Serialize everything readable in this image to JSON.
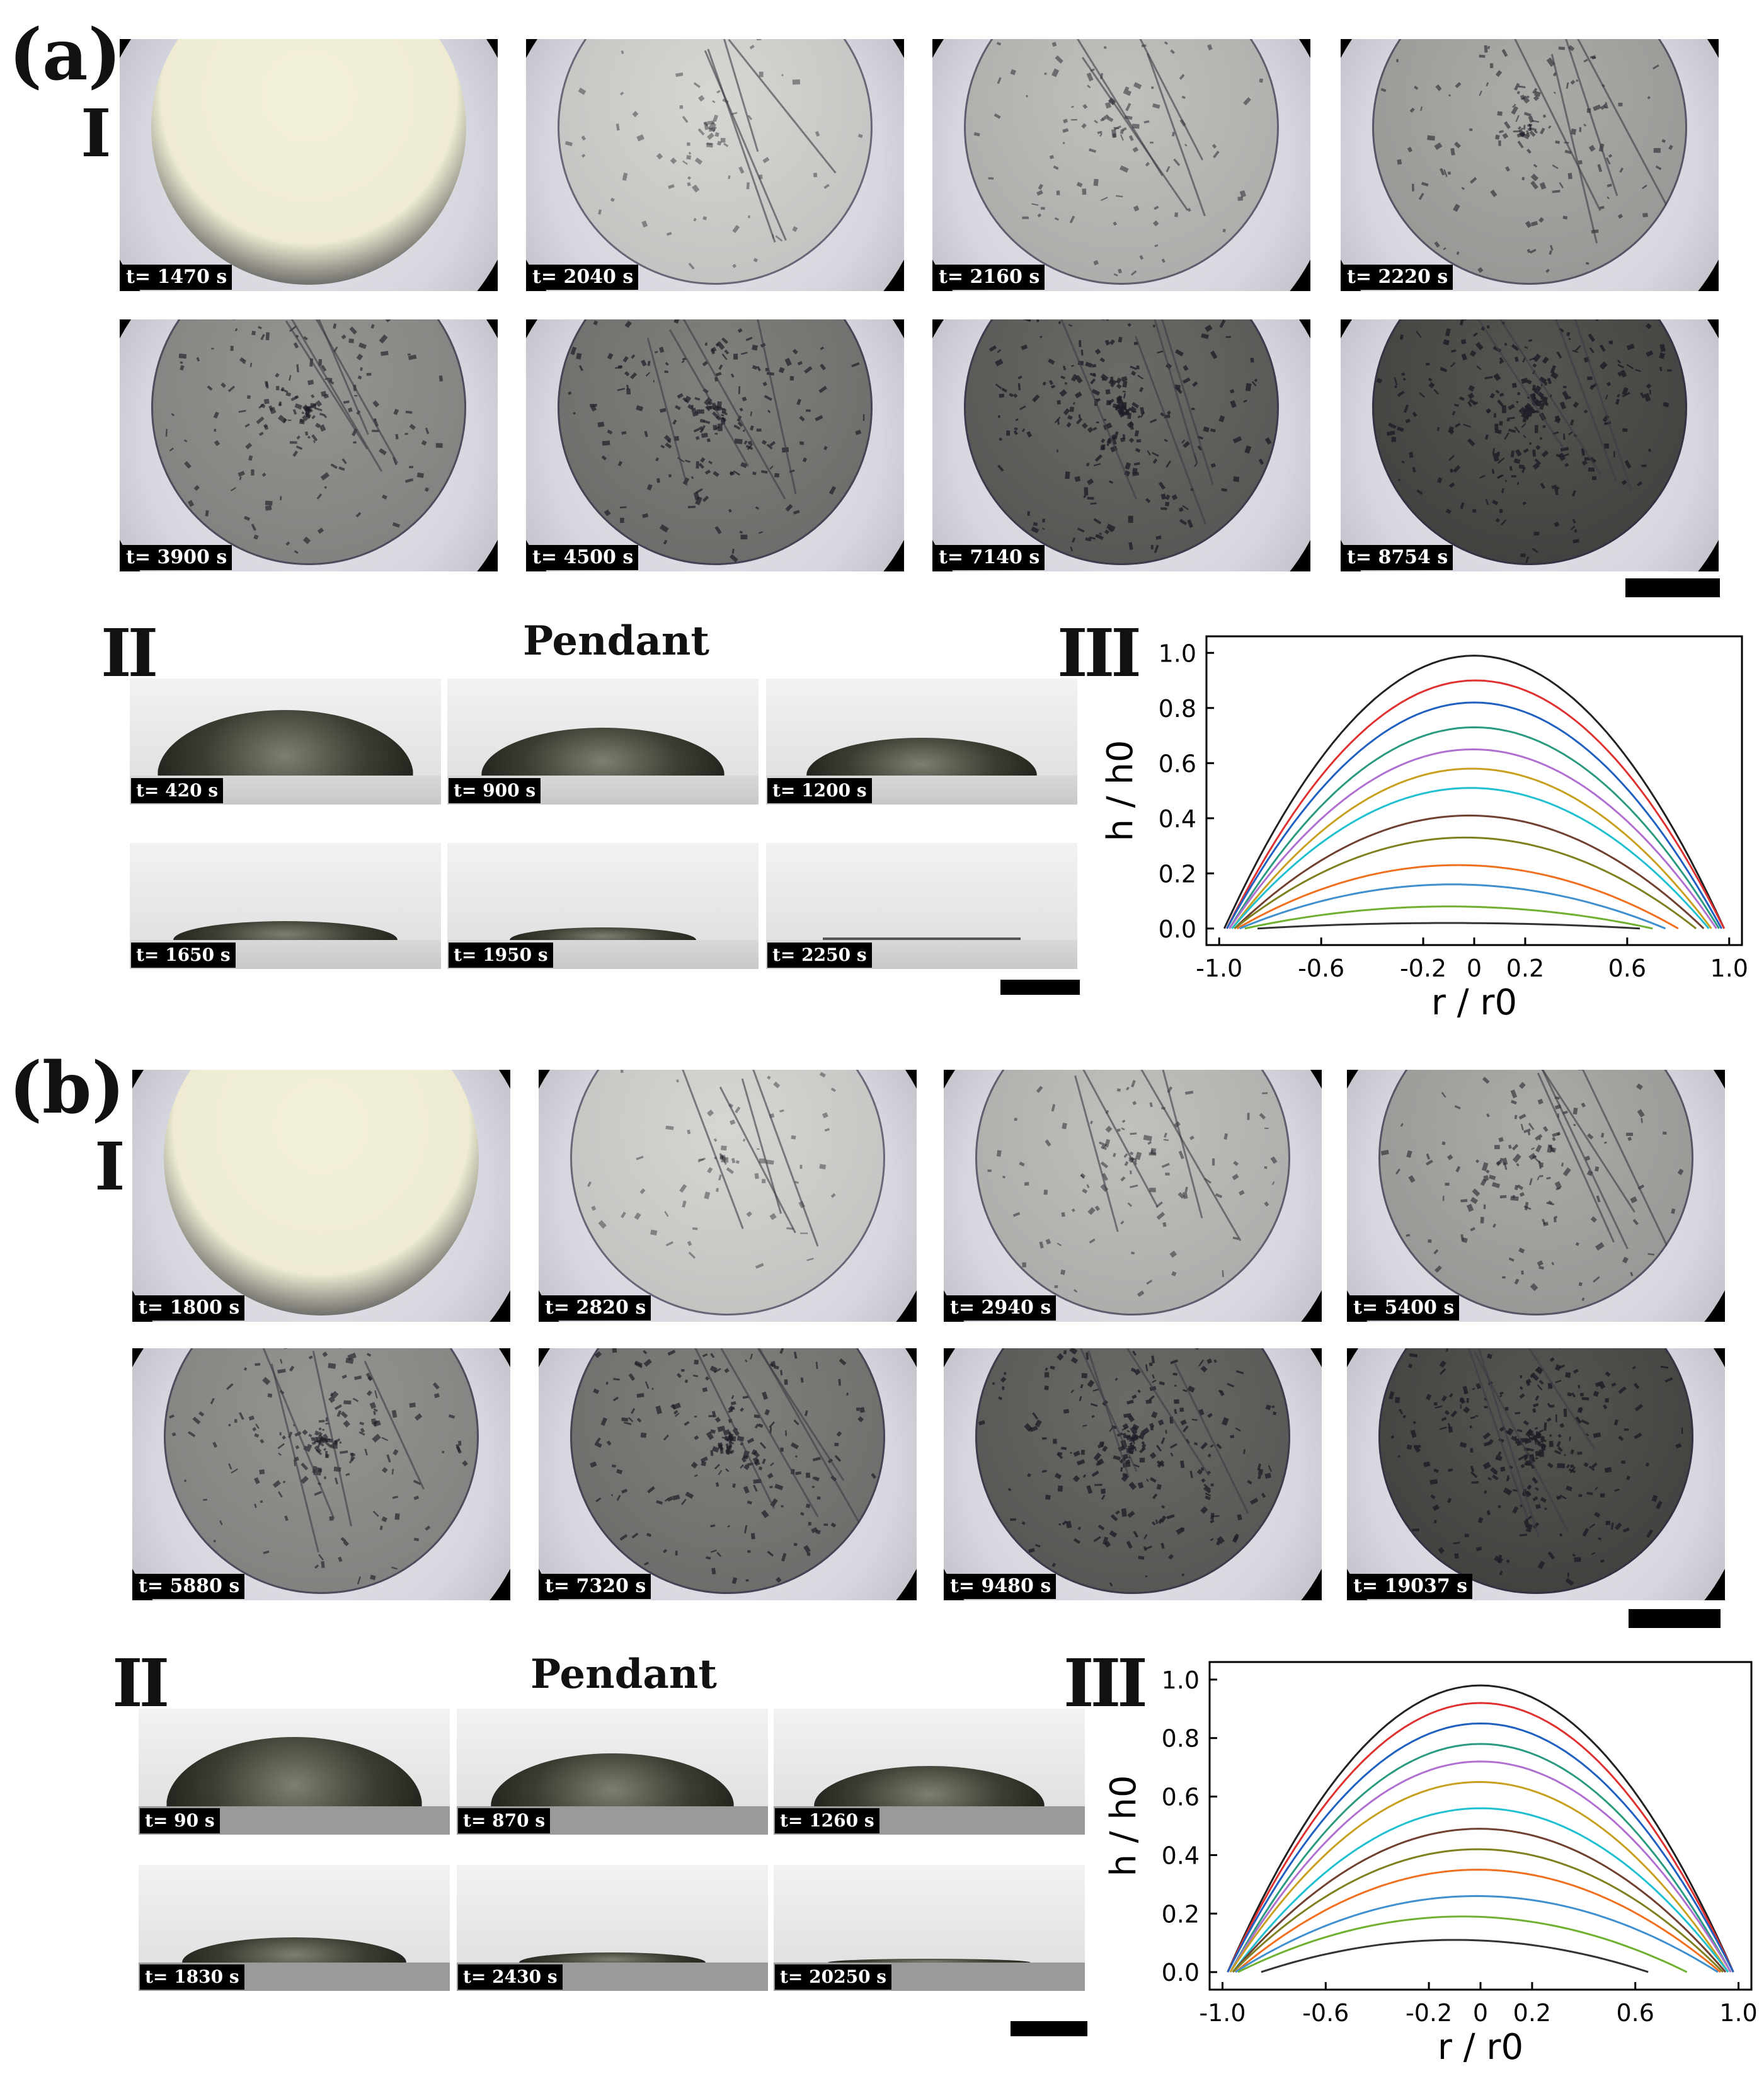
{
  "panels": {
    "a": {
      "label": "(a)",
      "row_I_label": "I",
      "row_II_label": "II",
      "row_III_label": "III",
      "pendant_title": "Pendant",
      "top_times": [
        "t= 1470 s",
        "t= 2040 s",
        "t= 2160 s",
        "t= 2220 s",
        "t= 3900 s",
        "t= 4500 s",
        "t= 7140 s",
        "t= 8754 s"
      ],
      "side_times": [
        "t= 420 s",
        "t= 900 s",
        "t= 1200 s",
        "t= 1650 s",
        "t= 1950 s",
        "t= 2250 s"
      ]
    },
    "b": {
      "label": "(b)",
      "row_I_label": "I",
      "row_II_label": "II",
      "row_III_label": "III",
      "pendant_title": "Pendant",
      "top_times": [
        "t= 1800 s",
        "t= 2820 s",
        "t= 2940 s",
        "t= 5400 s",
        "t= 5880 s",
        "t= 7320 s",
        "t= 9480 s",
        "t= 19037 s"
      ],
      "side_times": [
        "t= 90 s",
        "t= 870 s",
        "t= 1260 s",
        "t= 1830 s",
        "t= 2430 s",
        "t= 20250 s"
      ]
    }
  },
  "chart_data": [
    {
      "type": "line",
      "panel": "a-III",
      "xlabel": "r / r0",
      "ylabel": "h / h0",
      "xlim": [
        -1.0,
        1.0
      ],
      "ylim": [
        0.0,
        1.0
      ],
      "xticks": [
        "-1.0",
        "-0.6",
        "-0.2",
        "0",
        "0.2",
        "0.6",
        "1.0"
      ],
      "xtick_values": [
        -1.0,
        -0.6,
        -0.2,
        0,
        0.2,
        0.6,
        1.0
      ],
      "yticks": [
        "0.0",
        "0.2",
        "0.4",
        "0.6",
        "0.8",
        "1.0"
      ],
      "ytick_values": [
        0,
        0.2,
        0.4,
        0.6,
        0.8,
        1.0
      ],
      "series": [
        {
          "color": "#222222",
          "peak": 0.99,
          "x_start": -0.98,
          "x_end": 0.98
        },
        {
          "color": "#e03030",
          "peak": 0.9,
          "x_start": -0.97,
          "x_end": 0.98
        },
        {
          "color": "#2060c0",
          "peak": 0.82,
          "x_start": -0.97,
          "x_end": 0.97
        },
        {
          "color": "#2a9a80",
          "peak": 0.73,
          "x_start": -0.96,
          "x_end": 0.96
        },
        {
          "color": "#b070d0",
          "peak": 0.65,
          "x_start": -0.96,
          "x_end": 0.95
        },
        {
          "color": "#c8a020",
          "peak": 0.58,
          "x_start": -0.95,
          "x_end": 0.93
        },
        {
          "color": "#20c0d0",
          "peak": 0.51,
          "x_start": -0.95,
          "x_end": 0.92
        },
        {
          "color": "#704030",
          "peak": 0.41,
          "x_start": -0.94,
          "x_end": 0.9
        },
        {
          "color": "#808020",
          "peak": 0.33,
          "x_start": -0.94,
          "x_end": 0.87
        },
        {
          "color": "#f07020",
          "peak": 0.23,
          "x_start": -0.93,
          "x_end": 0.8
        },
        {
          "color": "#4090d0",
          "peak": 0.16,
          "x_start": -0.92,
          "x_end": 0.75
        },
        {
          "color": "#70b030",
          "peak": 0.08,
          "x_start": -0.9,
          "x_end": 0.7
        },
        {
          "color": "#333333",
          "peak": 0.02,
          "x_start": -0.85,
          "x_end": 0.65
        }
      ]
    },
    {
      "type": "line",
      "panel": "b-III",
      "xlabel": "r / r0",
      "ylabel": "h / h0",
      "xlim": [
        -1.0,
        1.0
      ],
      "ylim": [
        0.0,
        1.0
      ],
      "xticks": [
        "-1.0",
        "-0.6",
        "-0.2",
        "0",
        "0.2",
        "0.6",
        "1.0"
      ],
      "xtick_values": [
        -1.0,
        -0.6,
        -0.2,
        0,
        0.2,
        0.6,
        1.0
      ],
      "yticks": [
        "0.0",
        "0.2",
        "0.4",
        "0.6",
        "0.8",
        "1.0"
      ],
      "ytick_values": [
        0,
        0.2,
        0.4,
        0.6,
        0.8,
        1.0
      ],
      "series": [
        {
          "color": "#222222",
          "peak": 0.98,
          "x_start": -0.98,
          "x_end": 0.98
        },
        {
          "color": "#e03030",
          "peak": 0.92,
          "x_start": -0.98,
          "x_end": 0.98
        },
        {
          "color": "#2060c0",
          "peak": 0.85,
          "x_start": -0.98,
          "x_end": 0.98
        },
        {
          "color": "#2a9a80",
          "peak": 0.78,
          "x_start": -0.97,
          "x_end": 0.97
        },
        {
          "color": "#b070d0",
          "peak": 0.72,
          "x_start": -0.97,
          "x_end": 0.97
        },
        {
          "color": "#c8a020",
          "peak": 0.65,
          "x_start": -0.97,
          "x_end": 0.96
        },
        {
          "color": "#20c0d0",
          "peak": 0.56,
          "x_start": -0.96,
          "x_end": 0.96
        },
        {
          "color": "#704030",
          "peak": 0.49,
          "x_start": -0.96,
          "x_end": 0.95
        },
        {
          "color": "#808020",
          "peak": 0.42,
          "x_start": -0.96,
          "x_end": 0.94
        },
        {
          "color": "#f07020",
          "peak": 0.35,
          "x_start": -0.95,
          "x_end": 0.93
        },
        {
          "color": "#4090d0",
          "peak": 0.26,
          "x_start": -0.95,
          "x_end": 0.92
        },
        {
          "color": "#70b030",
          "peak": 0.19,
          "x_start": -0.94,
          "x_end": 0.8
        },
        {
          "color": "#333333",
          "peak": 0.11,
          "x_start": -0.85,
          "x_end": 0.65
        }
      ]
    }
  ]
}
